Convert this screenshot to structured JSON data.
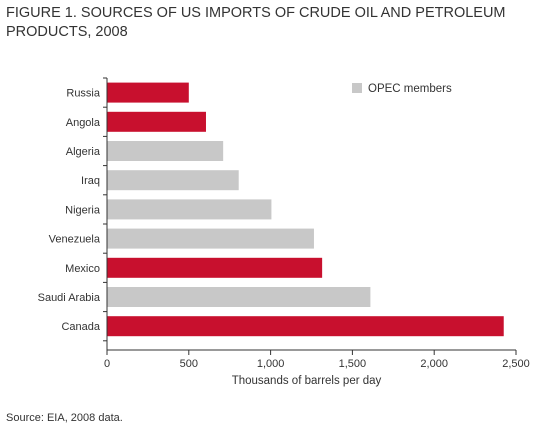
{
  "title": "FIGURE 1. SOURCES OF US IMPORTS OF CRUDE OIL AND PETROLEUM PRODUCTS, 2008",
  "source": "Source: EIA, 2008 data.",
  "colors": {
    "opec": "#c8c8c8",
    "non_opec": "#c8102e",
    "axis": "#333333"
  },
  "chart_data": {
    "type": "bar",
    "orientation": "horizontal",
    "title": "FIGURE 1. SOURCES OF US IMPORTS OF CRUDE OIL AND PETROLEUM PRODUCTS, 2008",
    "xlabel": "Thousands of barrels per day",
    "ylabel": "",
    "xlim": [
      0,
      2500
    ],
    "xticks": [
      0,
      500,
      1000,
      1500,
      2000,
      2500
    ],
    "xtick_labels": [
      "0",
      "500",
      "1,000",
      "1,500",
      "2,000",
      "2,500"
    ],
    "categories": [
      "Russia",
      "Angola",
      "Algeria",
      "Iraq",
      "Nigeria",
      "Venezuela",
      "Mexico",
      "Saudi Arabia",
      "Canada"
    ],
    "values": [
      500,
      605,
      710,
      805,
      1005,
      1265,
      1315,
      1610,
      2425
    ],
    "opec": [
      false,
      false,
      true,
      true,
      true,
      true,
      false,
      true,
      false
    ],
    "grid": false,
    "legend": {
      "entries": [
        "OPEC members"
      ],
      "placement": "top-right"
    }
  }
}
